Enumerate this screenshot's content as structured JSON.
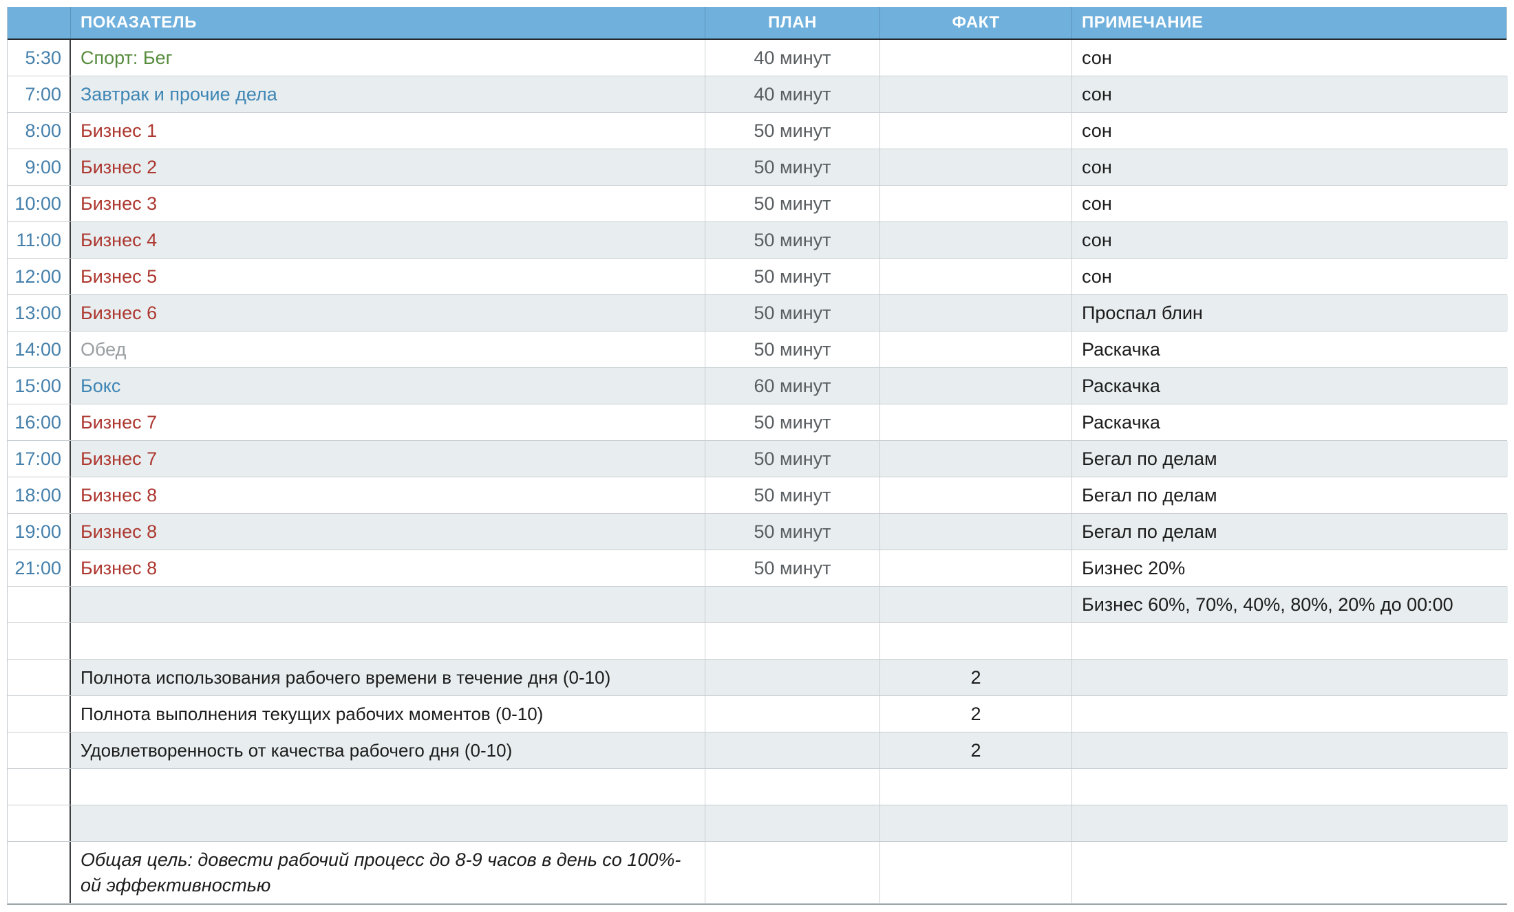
{
  "table": {
    "columns": {
      "time_header": "",
      "indicator": "ПОКАЗАТЕЛЬ",
      "plan": "ПЛАН",
      "fact": "ФАКТ",
      "note": "ПРИМЕЧАНИЕ"
    },
    "colors": {
      "header_bg": "#6fb0dd",
      "alt_row_bg": "#e8edef",
      "time_text": "#4580ab",
      "sport_text": "#578c3e",
      "routine_text": "#3f86b5",
      "business_text": "#ad3830",
      "muted_text": "#9a9fa2",
      "plan_text": "#595e61",
      "note_text": "#1c1c1c"
    },
    "rows": [
      {
        "kind": "schedule",
        "time": "5:30",
        "indicator": "Спорт: Бег",
        "color": "sport_text",
        "plan": "40 минут",
        "fact": "",
        "note": "сон"
      },
      {
        "kind": "schedule",
        "time": "7:00",
        "indicator": "Завтрак и прочие дела",
        "color": "routine_text",
        "plan": "40 минут",
        "fact": "",
        "note": "сон"
      },
      {
        "kind": "schedule",
        "time": "8:00",
        "indicator": "Бизнес 1",
        "color": "business_text",
        "plan": "50 минут",
        "fact": "",
        "note": "сон"
      },
      {
        "kind": "schedule",
        "time": "9:00",
        "indicator": "Бизнес 2",
        "color": "business_text",
        "plan": "50 минут",
        "fact": "",
        "note": "сон"
      },
      {
        "kind": "schedule",
        "time": "10:00",
        "indicator": "Бизнес 3",
        "color": "business_text",
        "plan": "50 минут",
        "fact": "",
        "note": "сон"
      },
      {
        "kind": "schedule",
        "time": "11:00",
        "indicator": "Бизнес 4",
        "color": "business_text",
        "plan": "50 минут",
        "fact": "",
        "note": "сон"
      },
      {
        "kind": "schedule",
        "time": "12:00",
        "indicator": "Бизнес 5",
        "color": "business_text",
        "plan": "50 минут",
        "fact": "",
        "note": "сон"
      },
      {
        "kind": "schedule",
        "time": "13:00",
        "indicator": "Бизнес 6",
        "color": "business_text",
        "plan": "50 минут",
        "fact": "",
        "note": "Проспал блин"
      },
      {
        "kind": "schedule",
        "time": "14:00",
        "indicator": "Обед",
        "color": "muted_text",
        "plan": "50 минут",
        "fact": "",
        "note": "Раскачка"
      },
      {
        "kind": "schedule",
        "time": "15:00",
        "indicator": "Бокс",
        "color": "routine_text",
        "plan": "60 минут",
        "fact": "",
        "note": "Раскачка"
      },
      {
        "kind": "schedule",
        "time": "16:00",
        "indicator": "Бизнес 7",
        "color": "business_text",
        "plan": "50 минут",
        "fact": "",
        "note": "Раскачка"
      },
      {
        "kind": "schedule",
        "time": "17:00",
        "indicator": "Бизнес 7",
        "color": "business_text",
        "plan": "50 минут",
        "fact": "",
        "note": "Бегал по делам"
      },
      {
        "kind": "schedule",
        "time": "18:00",
        "indicator": "Бизнес 8",
        "color": "business_text",
        "plan": "50 минут",
        "fact": "",
        "note": "Бегал по делам"
      },
      {
        "kind": "schedule",
        "time": "19:00",
        "indicator": "Бизнес 8",
        "color": "business_text",
        "plan": "50 минут",
        "fact": "",
        "note": "Бегал по делам"
      },
      {
        "kind": "schedule",
        "time": "21:00",
        "indicator": "Бизнес 8",
        "color": "business_text",
        "plan": "50 минут",
        "fact": "",
        "note": "Бизнес 20%"
      },
      {
        "kind": "note-only",
        "time": "",
        "indicator": "",
        "color": "note_text",
        "plan": "",
        "fact": "",
        "note": "Бизнес 60%, 70%, 40%, 80%, 20% до 00:00"
      },
      {
        "kind": "empty",
        "time": "",
        "indicator": "",
        "color": "note_text",
        "plan": "",
        "fact": "",
        "note": ""
      },
      {
        "kind": "summary",
        "time": "",
        "indicator": "Полнота использования рабочего времени в течение дня (0-10)",
        "color": "note_text",
        "plan": "",
        "fact": "2",
        "note": ""
      },
      {
        "kind": "summary",
        "time": "",
        "indicator": "Полнота выполнения текущих рабочих моментов (0-10)",
        "color": "note_text",
        "plan": "",
        "fact": "2",
        "note": ""
      },
      {
        "kind": "summary",
        "time": "",
        "indicator": "Удовлетворенность от качества рабочего дня (0-10)",
        "color": "note_text",
        "plan": "",
        "fact": "2",
        "note": ""
      },
      {
        "kind": "empty",
        "time": "",
        "indicator": "",
        "color": "note_text",
        "plan": "",
        "fact": "",
        "note": ""
      },
      {
        "kind": "empty",
        "time": "",
        "indicator": "",
        "color": "note_text",
        "plan": "",
        "fact": "",
        "note": ""
      },
      {
        "kind": "goal",
        "time": "",
        "indicator": "Общая цель: довести рабочий процесс до 8-9 часов в день со 100%-ой эффективностью",
        "color": "note_text",
        "plan": "",
        "fact": "",
        "note": ""
      }
    ]
  }
}
